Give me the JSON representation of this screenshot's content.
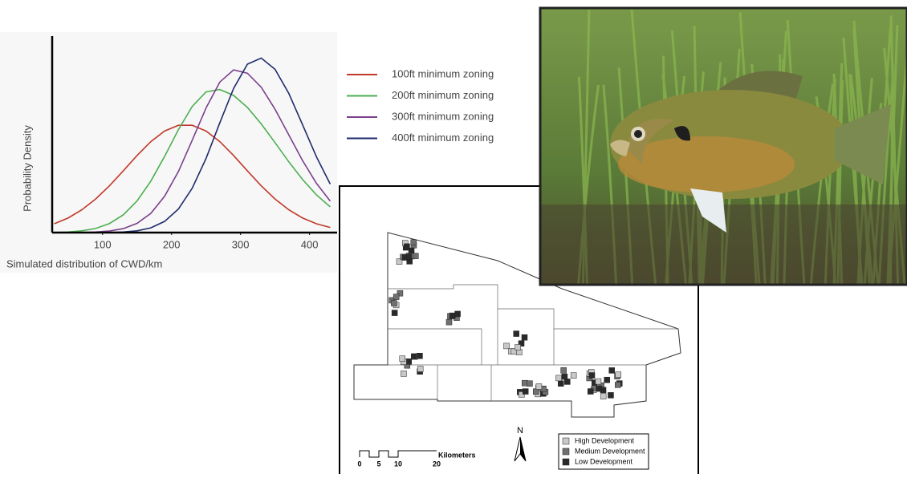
{
  "chart_data": {
    "type": "line",
    "ylabel": "Probability Density",
    "xlabel": "Simulated distribution of CWD/km",
    "x": [
      30,
      50,
      70,
      90,
      110,
      130,
      150,
      170,
      190,
      210,
      230,
      250,
      270,
      290,
      310,
      330,
      350,
      370,
      390,
      410,
      430
    ],
    "series": [
      {
        "name": "100ft minimum zoning",
        "color": "#c0392b",
        "values": [
          0.045,
          0.074,
          0.116,
          0.171,
          0.238,
          0.314,
          0.392,
          0.463,
          0.517,
          0.546,
          0.546,
          0.517,
          0.463,
          0.392,
          0.314,
          0.238,
          0.171,
          0.116,
          0.074,
          0.045,
          0.026
        ]
      },
      {
        "name": "200ft minimum zoning",
        "color": "#4caf50",
        "values": [
          0.001,
          0.003,
          0.009,
          0.021,
          0.046,
          0.09,
          0.161,
          0.262,
          0.388,
          0.524,
          0.642,
          0.716,
          0.728,
          0.698,
          0.637,
          0.553,
          0.458,
          0.36,
          0.27,
          0.192,
          0.131
        ]
      },
      {
        "name": "300ft minimum zoning",
        "color": "#7b3f8c",
        "values": [
          0,
          0,
          0.001,
          0.003,
          0.008,
          0.02,
          0.047,
          0.098,
          0.185,
          0.311,
          0.47,
          0.634,
          0.766,
          0.828,
          0.811,
          0.74,
          0.628,
          0.497,
          0.366,
          0.251,
          0.16
        ]
      },
      {
        "name": "400ft minimum zoning",
        "color": "#1f2a6b",
        "values": [
          0,
          0,
          0,
          0,
          0.001,
          0.003,
          0.009,
          0.024,
          0.057,
          0.12,
          0.226,
          0.377,
          0.559,
          0.734,
          0.857,
          0.888,
          0.831,
          0.708,
          0.548,
          0.386,
          0.247
        ]
      }
    ],
    "xlim": [
      27,
      440
    ],
    "ylim": [
      0,
      1
    ],
    "xticks": [
      100,
      200,
      300,
      400
    ]
  },
  "map": {
    "north": "N",
    "scale": {
      "ticks": [
        "0",
        "5",
        "10",
        "20"
      ],
      "unit": "Kilometers"
    },
    "legend": [
      "High Development",
      "Medium Development",
      "Low Development"
    ]
  }
}
